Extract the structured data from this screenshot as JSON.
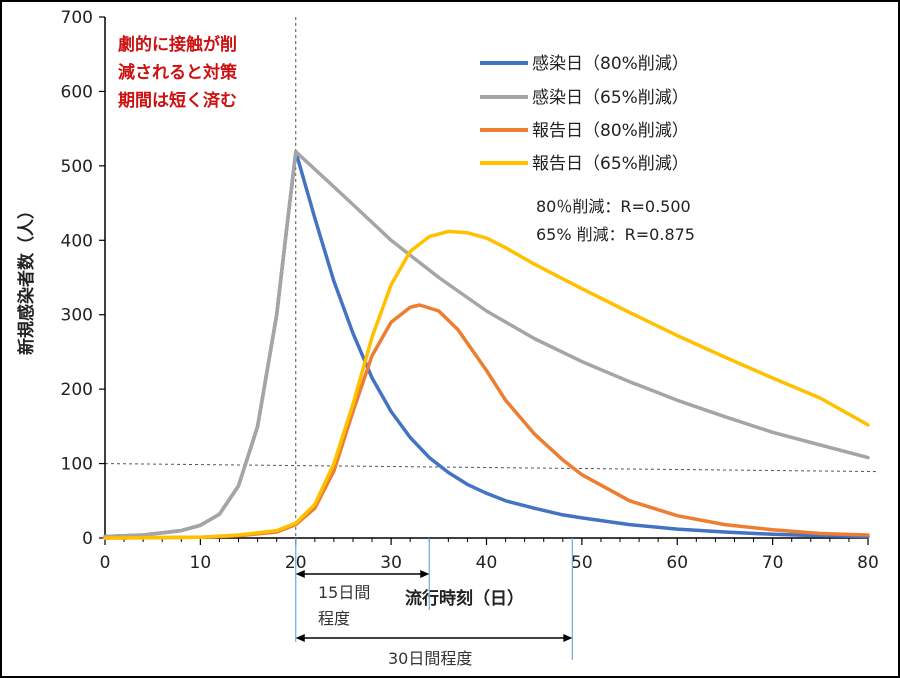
{
  "chart_data": {
    "type": "line",
    "title": "",
    "xlabel": "流行時刻（日）",
    "ylabel": "新規感染者数（人）",
    "xlim": [
      0,
      80
    ],
    "ylim": [
      0,
      700
    ],
    "x_ticks": [
      "0",
      "10",
      "20",
      "30",
      "40",
      "50",
      "60",
      "70",
      "80"
    ],
    "y_ticks": [
      "0",
      "100",
      "200",
      "300",
      "400",
      "500",
      "600",
      "700"
    ],
    "series": [
      {
        "name": "感染日（80%削減）",
        "color": "#4472C4",
        "points": [
          [
            0,
            2
          ],
          [
            4,
            4
          ],
          [
            8,
            10
          ],
          [
            10,
            17
          ],
          [
            12,
            32
          ],
          [
            14,
            70
          ],
          [
            16,
            150
          ],
          [
            18,
            300
          ],
          [
            19,
            410
          ],
          [
            20,
            519
          ],
          [
            22,
            430
          ],
          [
            24,
            345
          ],
          [
            26,
            275
          ],
          [
            28,
            215
          ],
          [
            30,
            170
          ],
          [
            32,
            135
          ],
          [
            34,
            108
          ],
          [
            36,
            88
          ],
          [
            38,
            72
          ],
          [
            40,
            60
          ],
          [
            42,
            50
          ],
          [
            45,
            40
          ],
          [
            48,
            31
          ],
          [
            50,
            27
          ],
          [
            55,
            18
          ],
          [
            60,
            12
          ],
          [
            65,
            8
          ],
          [
            70,
            5
          ],
          [
            75,
            3
          ],
          [
            80,
            2
          ]
        ]
      },
      {
        "name": "感染日（65%削減）",
        "color": "#A5A5A5",
        "points": [
          [
            0,
            2
          ],
          [
            4,
            4
          ],
          [
            8,
            10
          ],
          [
            10,
            17
          ],
          [
            12,
            32
          ],
          [
            14,
            70
          ],
          [
            16,
            150
          ],
          [
            18,
            300
          ],
          [
            19,
            410
          ],
          [
            20,
            519
          ],
          [
            25,
            460
          ],
          [
            30,
            400
          ],
          [
            35,
            350
          ],
          [
            40,
            305
          ],
          [
            45,
            268
          ],
          [
            50,
            237
          ],
          [
            55,
            210
          ],
          [
            60,
            185
          ],
          [
            65,
            163
          ],
          [
            70,
            142
          ],
          [
            75,
            125
          ],
          [
            80,
            108
          ]
        ]
      },
      {
        "name": "報告日（80%削減）",
        "color": "#ED7D31",
        "points": [
          [
            0,
            0
          ],
          [
            10,
            1
          ],
          [
            14,
            3
          ],
          [
            18,
            8
          ],
          [
            20,
            18
          ],
          [
            22,
            40
          ],
          [
            24,
            90
          ],
          [
            26,
            170
          ],
          [
            28,
            245
          ],
          [
            30,
            290
          ],
          [
            32,
            310
          ],
          [
            33,
            313
          ],
          [
            35,
            305
          ],
          [
            37,
            280
          ],
          [
            40,
            225
          ],
          [
            42,
            185
          ],
          [
            45,
            140
          ],
          [
            48,
            105
          ],
          [
            50,
            85
          ],
          [
            55,
            50
          ],
          [
            60,
            30
          ],
          [
            65,
            18
          ],
          [
            70,
            11
          ],
          [
            75,
            6
          ],
          [
            80,
            4
          ]
        ]
      },
      {
        "name": "報告日（65%削減）",
        "color": "#FFC000",
        "points": [
          [
            0,
            0
          ],
          [
            10,
            1
          ],
          [
            14,
            4
          ],
          [
            18,
            10
          ],
          [
            20,
            20
          ],
          [
            22,
            45
          ],
          [
            24,
            100
          ],
          [
            26,
            180
          ],
          [
            28,
            270
          ],
          [
            30,
            340
          ],
          [
            32,
            385
          ],
          [
            34,
            405
          ],
          [
            36,
            412
          ],
          [
            38,
            410
          ],
          [
            40,
            403
          ],
          [
            42,
            390
          ],
          [
            45,
            368
          ],
          [
            50,
            335
          ],
          [
            55,
            303
          ],
          [
            60,
            272
          ],
          [
            65,
            243
          ],
          [
            70,
            215
          ],
          [
            75,
            188
          ],
          [
            80,
            152
          ]
        ]
      }
    ],
    "reference_lines": {
      "hline_y": 100,
      "vline_x": 20
    },
    "annotations": {
      "note": [
        "劇的に接触が削",
        "減されると対策",
        "期間は短く済む"
      ],
      "params": [
        "80％削減：R=0.500",
        "65% 削減：R=0.875"
      ],
      "span_15": [
        "15日間",
        "程度"
      ],
      "span_30": "30日間程度",
      "span_15_range": [
        20,
        34
      ],
      "span_30_range": [
        20,
        49
      ]
    },
    "legend_position": "top-right",
    "grid": false
  }
}
